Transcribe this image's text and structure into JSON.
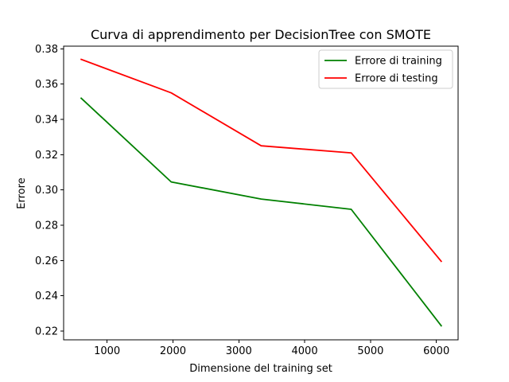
{
  "chart_data": {
    "type": "line",
    "title": "Curva di apprendimento per DecisionTree con SMOTE",
    "xlabel": "Dimensione del training set",
    "ylabel": "Errore",
    "xlim": [
      340,
      6330
    ],
    "ylim": [
      0.215,
      0.3815
    ],
    "xticks": [
      1000,
      2000,
      3000,
      4000,
      5000,
      6000
    ],
    "yticks": [
      0.22,
      0.24,
      0.26,
      0.28,
      0.3,
      0.32,
      0.34,
      0.36,
      0.38
    ],
    "grid": false,
    "legend_position": "top-right",
    "series": [
      {
        "name": "Errore di training",
        "color": "#008000",
        "x": [
          607,
          1974,
          3340,
          4707,
          6074
        ],
        "y": [
          0.352,
          0.3045,
          0.2948,
          0.289,
          0.223
        ]
      },
      {
        "name": "Errore di testing",
        "color": "#ff0000",
        "x": [
          607,
          1974,
          3340,
          4707,
          6074
        ],
        "y": [
          0.374,
          0.355,
          0.325,
          0.321,
          0.2595
        ]
      }
    ]
  }
}
